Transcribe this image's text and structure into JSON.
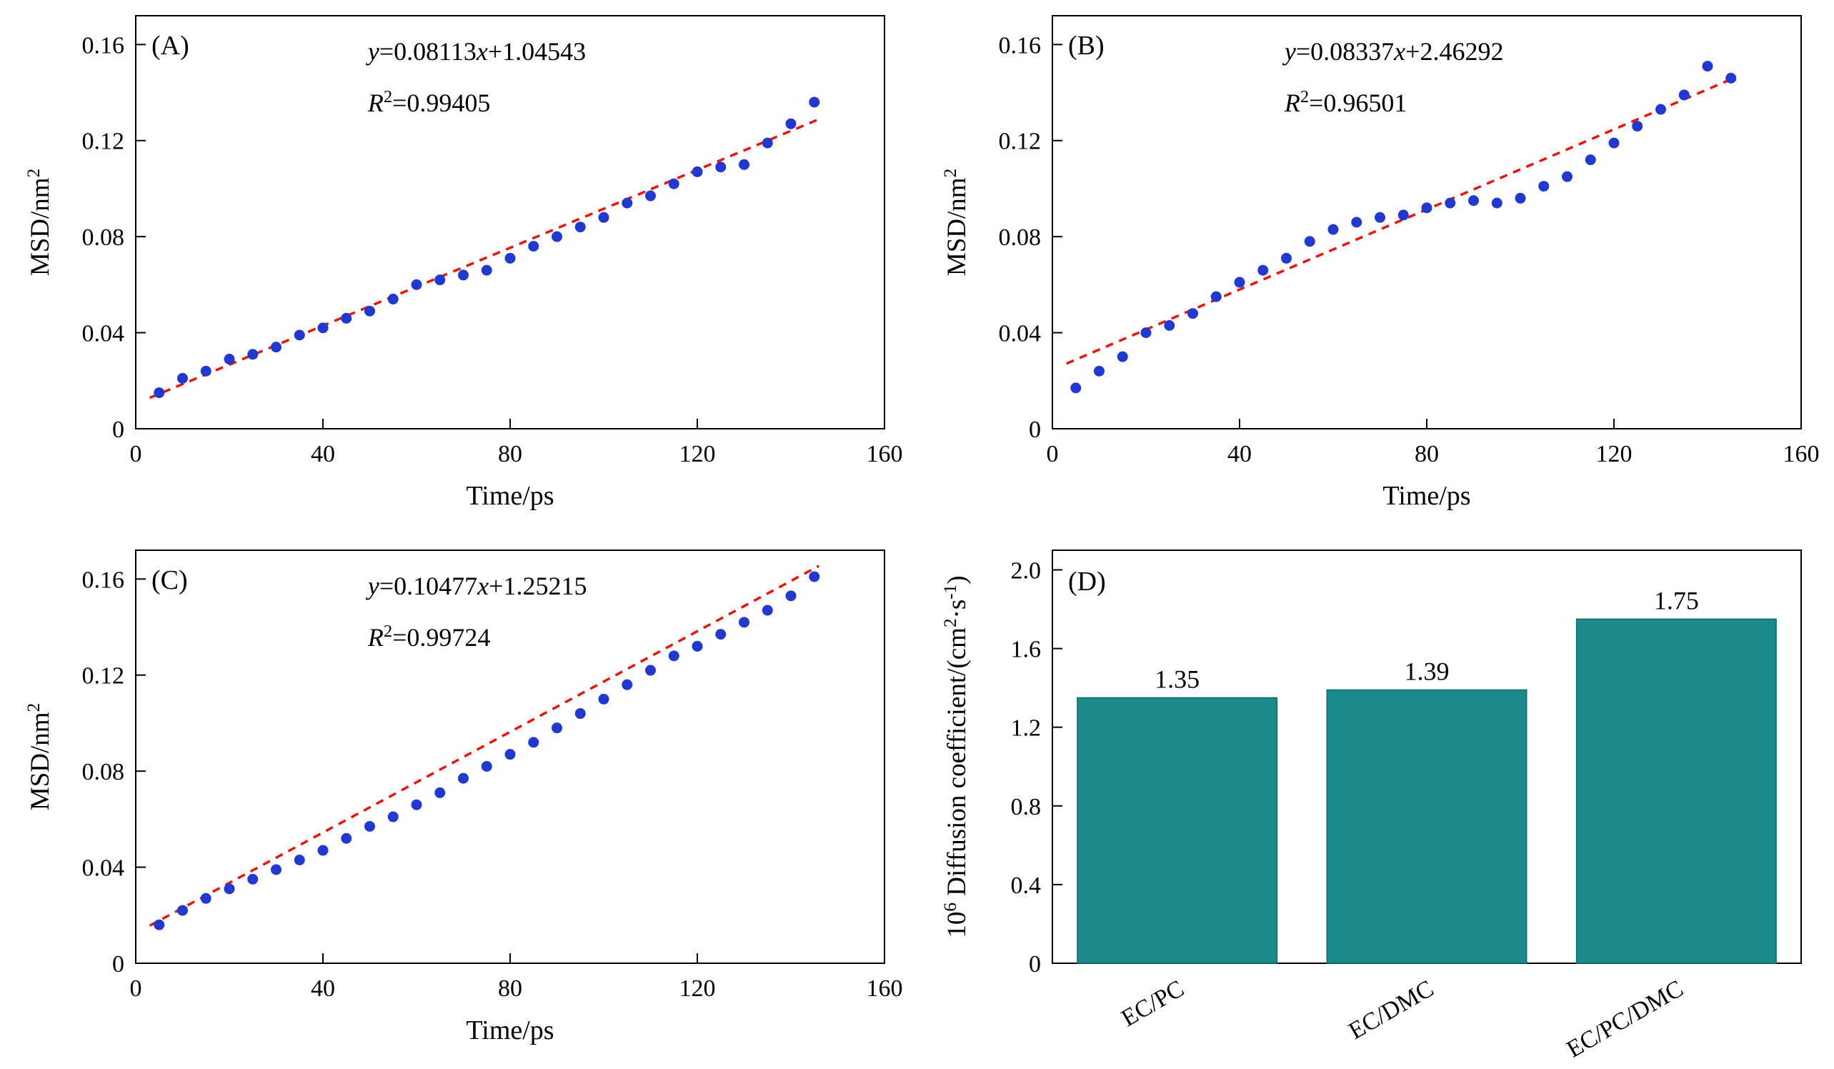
{
  "colors": {
    "point": "#2239d0",
    "fit_line": "#e8150d",
    "bar_fill": "#1a8a8c",
    "bar_edge": "#0f6b6d",
    "axis": "#000000",
    "background": "#ffffff"
  },
  "chart_data": [
    {
      "id": "A",
      "type": "scatter",
      "panel_label": "(A)",
      "equation": "y=0.08113x+1.04543",
      "r_squared": "R^2=0.99405",
      "fit": {
        "slope": 0.08113,
        "intercept": 1.04543,
        "scale": 0.01,
        "x_range": [
          3,
          146
        ]
      },
      "xlabel": "Time/ps",
      "ylabel": "MSD/nm^2",
      "xlim": [
        0,
        160
      ],
      "ylim": [
        0,
        0.172
      ],
      "xticks": [
        0,
        40,
        80,
        120,
        160
      ],
      "xtick_labels": [
        "0",
        "40",
        "80",
        "120",
        "160"
      ],
      "yticks": [
        0,
        0.04,
        0.08,
        0.12,
        0.16
      ],
      "ytick_labels": [
        "0",
        "0.04",
        "0.08",
        "0.12",
        "0.16"
      ],
      "x": [
        5,
        10,
        15,
        20,
        25,
        30,
        35,
        40,
        45,
        50,
        55,
        60,
        65,
        70,
        75,
        80,
        85,
        90,
        95,
        100,
        105,
        110,
        115,
        120,
        125,
        130,
        135,
        140,
        145
      ],
      "y": [
        0.015,
        0.021,
        0.024,
        0.029,
        0.031,
        0.034,
        0.039,
        0.042,
        0.046,
        0.049,
        0.054,
        0.06,
        0.062,
        0.064,
        0.066,
        0.071,
        0.076,
        0.08,
        0.084,
        0.088,
        0.094,
        0.097,
        0.102,
        0.107,
        0.109,
        0.11,
        0.119,
        0.127,
        0.136
      ]
    },
    {
      "id": "B",
      "type": "scatter",
      "panel_label": "(B)",
      "equation": "y=0.08337x+2.46292",
      "r_squared": "R^2=0.96501",
      "fit": {
        "slope": 0.08337,
        "intercept": 2.46292,
        "scale": 0.01,
        "x_range": [
          3,
          146
        ]
      },
      "xlabel": "Time/ps",
      "ylabel": "MSD/nm^2",
      "xlim": [
        0,
        160
      ],
      "ylim": [
        0,
        0.172
      ],
      "xticks": [
        0,
        40,
        80,
        120,
        160
      ],
      "xtick_labels": [
        "0",
        "40",
        "80",
        "120",
        "160"
      ],
      "yticks": [
        0,
        0.04,
        0.08,
        0.12,
        0.16
      ],
      "ytick_labels": [
        "0",
        "0.04",
        "0.08",
        "0.12",
        "0.16"
      ],
      "x": [
        5,
        10,
        15,
        20,
        25,
        30,
        35,
        40,
        45,
        50,
        55,
        60,
        65,
        70,
        75,
        80,
        85,
        90,
        95,
        100,
        105,
        110,
        115,
        120,
        125,
        130,
        135,
        140,
        145
      ],
      "y": [
        0.017,
        0.024,
        0.03,
        0.04,
        0.043,
        0.048,
        0.055,
        0.061,
        0.066,
        0.071,
        0.078,
        0.083,
        0.086,
        0.088,
        0.089,
        0.092,
        0.094,
        0.095,
        0.094,
        0.096,
        0.101,
        0.105,
        0.112,
        0.119,
        0.126,
        0.133,
        0.139,
        0.151,
        0.146
      ]
    },
    {
      "id": "C",
      "type": "scatter",
      "panel_label": "(C)",
      "equation": "y=0.10477x+1.25215",
      "r_squared": "R^2=0.99724",
      "fit": {
        "slope": 0.10477,
        "intercept": 1.25215,
        "scale": 0.01,
        "x_range": [
          3,
          146
        ]
      },
      "xlabel": "Time/ps",
      "ylabel": "MSD/nm^2",
      "xlim": [
        0,
        160
      ],
      "ylim": [
        0,
        0.172
      ],
      "xticks": [
        0,
        40,
        80,
        120,
        160
      ],
      "xtick_labels": [
        "0",
        "40",
        "80",
        "120",
        "160"
      ],
      "yticks": [
        0,
        0.04,
        0.08,
        0.12,
        0.16
      ],
      "ytick_labels": [
        "0",
        "0.04",
        "0.08",
        "0.12",
        "0.16"
      ],
      "x": [
        5,
        10,
        15,
        20,
        25,
        30,
        35,
        40,
        45,
        50,
        55,
        60,
        65,
        70,
        75,
        80,
        85,
        90,
        95,
        100,
        105,
        110,
        115,
        120,
        125,
        130,
        135,
        140,
        145
      ],
      "y": [
        0.016,
        0.022,
        0.027,
        0.031,
        0.035,
        0.039,
        0.043,
        0.047,
        0.052,
        0.057,
        0.061,
        0.066,
        0.071,
        0.077,
        0.082,
        0.087,
        0.092,
        0.098,
        0.104,
        0.11,
        0.116,
        0.122,
        0.128,
        0.132,
        0.137,
        0.142,
        0.147,
        0.153,
        0.161
      ]
    },
    {
      "id": "D",
      "type": "bar",
      "panel_label": "(D)",
      "ylabel": "10^6 Diffusion coefficient/(cm^2·s^-1)",
      "categories": [
        "EC/PC",
        "EC/DMC",
        "EC/PC/DMC"
      ],
      "values": [
        1.35,
        1.39,
        1.75
      ],
      "value_labels": [
        "1.35",
        "1.39",
        "1.75"
      ],
      "ylim": [
        0,
        2.1
      ],
      "yticks": [
        0,
        0.4,
        0.8,
        1.2,
        1.6,
        2.0
      ],
      "ytick_labels": [
        "0",
        "0.4",
        "0.8",
        "1.2",
        "1.6",
        "2.0"
      ]
    }
  ]
}
